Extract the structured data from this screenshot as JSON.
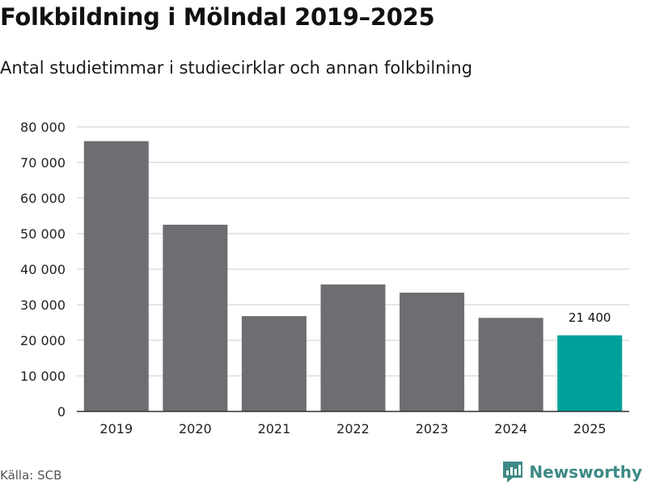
{
  "header": {
    "title": "Folkbildning i Mölndal 2019–2025",
    "subtitle": "Antal studietimmar i studiecirklar och annan folkbilning"
  },
  "footer": {
    "source": "Källa: SCB",
    "brand": "Newsworthy",
    "brand_icon": "newsworthy-logo-icon"
  },
  "colors": {
    "bar": "#6e6d72",
    "highlight": "#00a19a",
    "grid": "#dddddd",
    "axis": "#333333",
    "brand": "#3d8a86"
  },
  "chart_data": {
    "type": "bar",
    "title": "Folkbildning i Mölndal 2019–2025",
    "subtitle": "Antal studietimmar i studiecirklar och annan folkbilning",
    "xlabel": "",
    "ylabel": "",
    "categories": [
      "2019",
      "2020",
      "2021",
      "2022",
      "2023",
      "2024",
      "2025"
    ],
    "values": [
      76000,
      52500,
      26800,
      35700,
      33400,
      26300,
      21400
    ],
    "highlight_index": 6,
    "data_labels": [
      {
        "index": 6,
        "text": "21 400"
      }
    ],
    "ylim": [
      0,
      80000
    ],
    "yticks": [
      0,
      10000,
      20000,
      30000,
      40000,
      50000,
      60000,
      70000,
      80000
    ],
    "ytick_labels": [
      "0",
      "10 000",
      "20 000",
      "30 000",
      "40 000",
      "50 000",
      "60 000",
      "70 000",
      "80 000"
    ],
    "grid": true,
    "legend": "none"
  }
}
